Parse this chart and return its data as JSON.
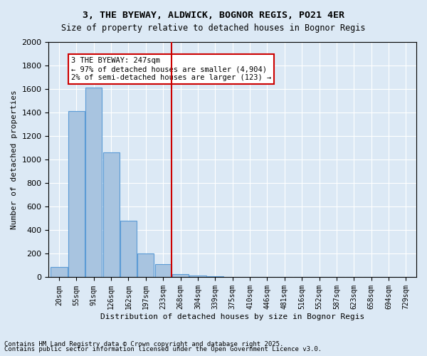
{
  "title1": "3, THE BYEWAY, ALDWICK, BOGNOR REGIS, PO21 4ER",
  "title2": "Size of property relative to detached houses in Bognor Regis",
  "xlabel": "Distribution of detached houses by size in Bognor Regis",
  "ylabel": "Number of detached properties",
  "footnote1": "Contains HM Land Registry data © Crown copyright and database right 2025.",
  "footnote2": "Contains public sector information licensed under the Open Government Licence v3.0.",
  "bar_labels": [
    "20sqm",
    "55sqm",
    "91sqm",
    "126sqm",
    "162sqm",
    "197sqm",
    "233sqm",
    "268sqm",
    "304sqm",
    "339sqm",
    "375sqm",
    "410sqm",
    "446sqm",
    "481sqm",
    "516sqm",
    "552sqm",
    "587sqm",
    "623sqm",
    "658sqm",
    "694sqm",
    "729sqm"
  ],
  "bar_values": [
    90,
    1415,
    1610,
    1060,
    480,
    200,
    110,
    30,
    15,
    8,
    4,
    0,
    0,
    0,
    0,
    0,
    0,
    0,
    0,
    0,
    0
  ],
  "bar_color": "#a8c4e0",
  "bar_edge_color": "#5b9bd5",
  "highlight_bar_index": 6,
  "highlight_bar_value": 110,
  "vline_x": 6.5,
  "vline_color": "#cc0000",
  "property_size": "247sqm",
  "annotation_text": "3 THE BYEWAY: 247sqm\n← 97% of detached houses are smaller (4,904)\n2% of semi-detached houses are larger (123) →",
  "annotation_box_color": "#cc0000",
  "annotation_text_color": "#000000",
  "ylim": [
    0,
    2000
  ],
  "background_color": "#dce9f5",
  "plot_bg_color": "#dce9f5",
  "grid_color": "#ffffff"
}
